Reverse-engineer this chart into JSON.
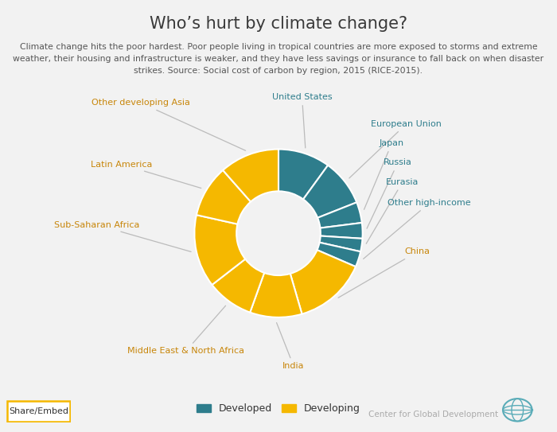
{
  "title": "Who’s hurt by climate change?",
  "subtitle": "Climate change hits the poor hardest. Poor people living in tropical countries are more exposed to storms and extreme\nweather, their housing and infrastructure is weaker, and they have less savings or insurance to fall back on when disaster\nstrikes. Source: Social cost of carbon by region, 2015 (RICE-2015).",
  "segments": [
    {
      "label": "United States",
      "value": 10.0,
      "color": "#2e7d8c",
      "type": "developed"
    },
    {
      "label": "European Union",
      "value": 9.0,
      "color": "#2e7d8c",
      "type": "developed"
    },
    {
      "label": "Japan",
      "value": 4.0,
      "color": "#2e7d8c",
      "type": "developed"
    },
    {
      "label": "Russia",
      "value": 3.0,
      "color": "#2e7d8c",
      "type": "developed"
    },
    {
      "label": "Eurasia",
      "value": 2.5,
      "color": "#2e7d8c",
      "type": "developed"
    },
    {
      "label": "Other high-income",
      "value": 3.0,
      "color": "#2e7d8c",
      "type": "developed"
    },
    {
      "label": "China",
      "value": 14.0,
      "color": "#f5b800",
      "type": "developing"
    },
    {
      "label": "India",
      "value": 10.0,
      "color": "#f5b800",
      "type": "developing"
    },
    {
      "label": "Middle East & North Africa",
      "value": 9.0,
      "color": "#f5b800",
      "type": "developing"
    },
    {
      "label": "Sub-Saharan Africa",
      "value": 14.0,
      "color": "#f5b800",
      "type": "developing"
    },
    {
      "label": "Latin America",
      "value": 10.0,
      "color": "#f5b800",
      "type": "developing"
    },
    {
      "label": "Other developing Asia",
      "value": 11.5,
      "color": "#f5b800",
      "type": "developing"
    }
  ],
  "developed_color": "#2e7d8c",
  "developing_color": "#f5b800",
  "bg_color": "#f2f2f2",
  "title_color": "#3a3a3a",
  "subtitle_color": "#555555",
  "label_color_developed": "#2e7d8c",
  "label_color_developing": "#c8860a",
  "wedge_edge_color": "#ffffff",
  "label_configs": [
    [
      0,
      0.28,
      1.62,
      "center"
    ],
    [
      1,
      1.1,
      1.3,
      "left"
    ],
    [
      2,
      1.2,
      1.07,
      "left"
    ],
    [
      3,
      1.25,
      0.84,
      "left"
    ],
    [
      4,
      1.28,
      0.61,
      "left"
    ],
    [
      5,
      1.3,
      0.36,
      "left"
    ],
    [
      6,
      1.5,
      -0.22,
      "left"
    ],
    [
      7,
      0.18,
      -1.58,
      "center"
    ],
    [
      8,
      -1.1,
      -1.4,
      "center"
    ],
    [
      9,
      -1.65,
      0.1,
      "right"
    ],
    [
      10,
      -1.5,
      0.82,
      "right"
    ],
    [
      11,
      -1.05,
      1.55,
      "right"
    ]
  ]
}
